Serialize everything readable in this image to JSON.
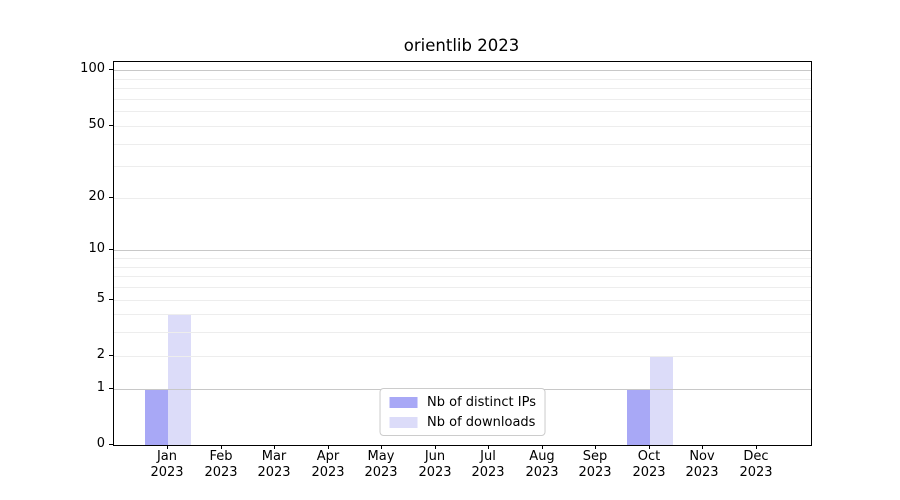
{
  "chart_data": {
    "type": "bar",
    "title": "orientlib 2023",
    "categories": [
      "Jan",
      "Feb",
      "Mar",
      "Apr",
      "May",
      "Jun",
      "Jul",
      "Aug",
      "Sep",
      "Oct",
      "Nov",
      "Dec"
    ],
    "category_year": "2023",
    "series": [
      {
        "name": "Nb of distinct IPs",
        "color": "#a8a8f6",
        "values": [
          1,
          0,
          0,
          0,
          0,
          0,
          0,
          0,
          0,
          1,
          0,
          0
        ]
      },
      {
        "name": "Nb of downloads",
        "color": "#dcdcf9",
        "values": [
          4,
          0,
          0,
          0,
          0,
          0,
          0,
          0,
          0,
          2,
          0,
          0
        ]
      }
    ],
    "yscale": "log10(1+v)",
    "ylim": [
      0,
      111
    ],
    "yticks": [
      0,
      1,
      2,
      5,
      10,
      20,
      50,
      100
    ],
    "major_gridlines": [
      1,
      10,
      100
    ],
    "minor_gridlines": [
      3,
      4,
      6,
      7,
      8,
      9,
      30,
      40,
      60,
      70,
      80,
      90
    ],
    "grid": true,
    "legend_position": "lower center inside axes",
    "colors": {
      "grid_major": "#c8c8c8",
      "grid_minor": "#ededed",
      "spine": "#000000",
      "text": "#000000",
      "legend_border": "#cccccc",
      "background": "#ffffff"
    }
  }
}
